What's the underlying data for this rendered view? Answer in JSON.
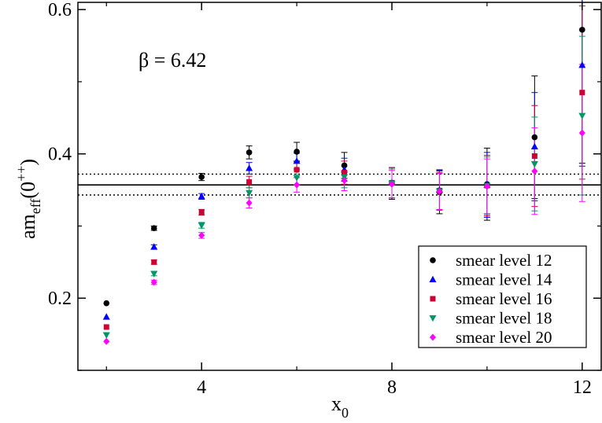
{
  "chart_data": {
    "type": "scatter",
    "title": "",
    "xlabel": "x",
    "xlabel_sub": "0",
    "ylabel_main": "am",
    "ylabel_sub": "eff",
    "ylabel_open": "(0",
    "ylabel_sup": "++",
    "ylabel_close": ")",
    "annotation": "β = 6.42",
    "xlim": [
      1.4,
      12.4
    ],
    "ylim": [
      0.1,
      0.61
    ],
    "x_ticks": [
      4,
      8,
      12
    ],
    "x_tick_labels": [
      "4",
      "8",
      "12"
    ],
    "x_minor_ticks": [
      2,
      6,
      10
    ],
    "y_ticks": [
      0.2,
      0.4,
      0.6
    ],
    "y_tick_labels": [
      "0.2",
      "0.4",
      "0.6"
    ],
    "y_minor_ticks": [
      0.1,
      0.3,
      0.5
    ],
    "legend_position": "bottom-right",
    "reference_lines": [
      {
        "y": 0.357,
        "style": "solid"
      },
      {
        "y": 0.372,
        "style": "dotted"
      },
      {
        "y": 0.343,
        "style": "dotted"
      }
    ],
    "series": [
      {
        "name": "smear level 12",
        "marker": "circle",
        "color": "#000000",
        "x": [
          2,
          3,
          4,
          5,
          6,
          7,
          8,
          9,
          10,
          11,
          12
        ],
        "y": [
          0.193,
          0.297,
          0.368,
          0.402,
          0.403,
          0.384,
          0.359,
          0.347,
          0.358,
          0.423,
          0.572
        ],
        "err": [
          0.002,
          0.003,
          0.005,
          0.009,
          0.013,
          0.018,
          0.022,
          0.03,
          0.05,
          0.085,
          0.185
        ]
      },
      {
        "name": "smear level 14",
        "marker": "triangle-up",
        "color": "#0000ff",
        "x": [
          2,
          3,
          4,
          5,
          6,
          7,
          8,
          9,
          10,
          11,
          12
        ],
        "y": [
          0.174,
          0.271,
          0.341,
          0.38,
          0.39,
          0.378,
          0.36,
          0.35,
          0.357,
          0.41,
          0.523
        ],
        "err": [
          0.002,
          0.003,
          0.004,
          0.008,
          0.011,
          0.016,
          0.021,
          0.028,
          0.045,
          0.075,
          0.14
        ]
      },
      {
        "name": "smear level 16",
        "marker": "square",
        "color": "#cc0033",
        "x": [
          2,
          3,
          4,
          5,
          6,
          7,
          8,
          9,
          10,
          11,
          12
        ],
        "y": [
          0.16,
          0.25,
          0.319,
          0.361,
          0.378,
          0.374,
          0.36,
          0.349,
          0.356,
          0.397,
          0.485
        ],
        "err": [
          0.002,
          0.003,
          0.004,
          0.008,
          0.011,
          0.016,
          0.021,
          0.027,
          0.042,
          0.07,
          0.12
        ]
      },
      {
        "name": "smear level 18",
        "marker": "triangle-down",
        "color": "#009966",
        "x": [
          2,
          3,
          4,
          5,
          6,
          7,
          8,
          9,
          10,
          11,
          12
        ],
        "y": [
          0.149,
          0.234,
          0.301,
          0.346,
          0.367,
          0.368,
          0.359,
          0.348,
          0.356,
          0.386,
          0.453
        ],
        "err": [
          0.002,
          0.003,
          0.004,
          0.007,
          0.01,
          0.015,
          0.02,
          0.026,
          0.04,
          0.065,
          0.11
        ]
      },
      {
        "name": "smear level 20",
        "marker": "diamond",
        "color": "#ff00ff",
        "x": [
          2,
          3,
          4,
          5,
          6,
          7,
          8,
          9,
          10,
          11,
          12
        ],
        "y": [
          0.14,
          0.222,
          0.287,
          0.332,
          0.357,
          0.363,
          0.358,
          0.348,
          0.355,
          0.376,
          0.429
        ],
        "err": [
          0.002,
          0.003,
          0.004,
          0.007,
          0.01,
          0.014,
          0.019,
          0.025,
          0.038,
          0.06,
          0.095
        ]
      }
    ]
  }
}
